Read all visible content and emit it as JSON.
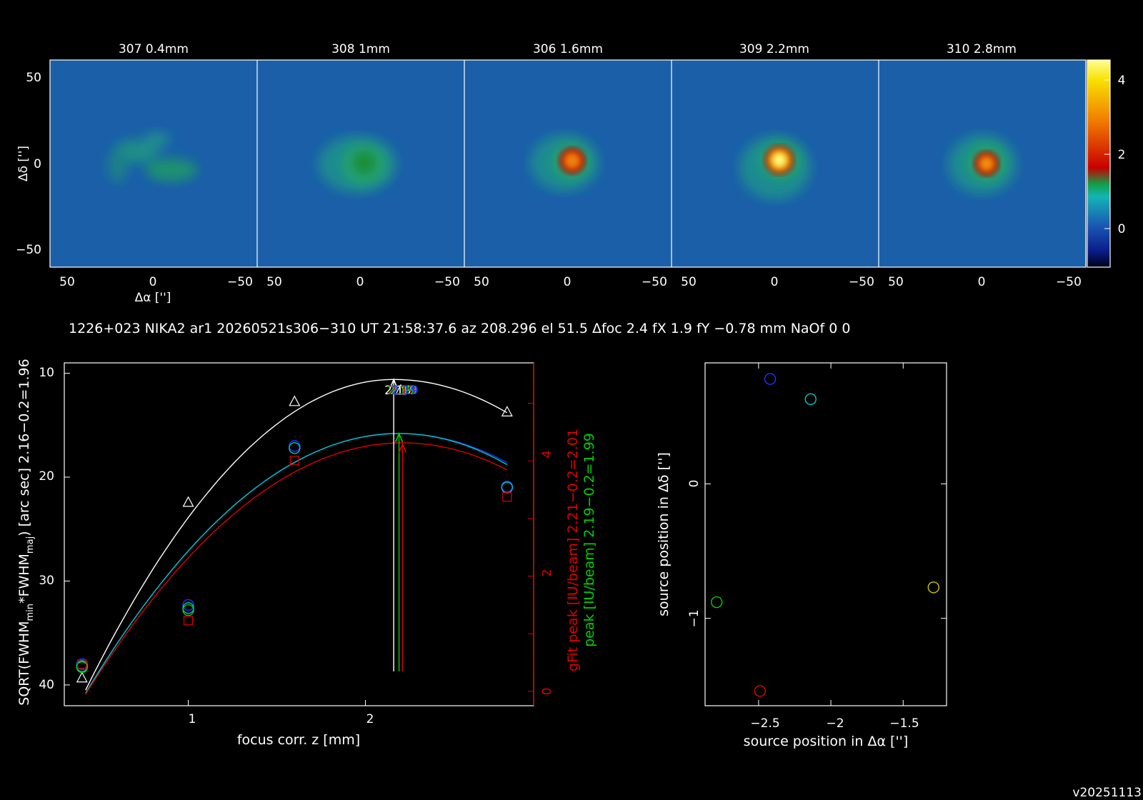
{
  "info_line": "1226+023 NIKA2 ar1 20260521s306−310 UT 21:58:37.6 az 208.296 el 51.5 Δfoc 2.4 fX 1.9 fY −0.78 mm NaOf 0 0",
  "version": "v20251113",
  "colors": {
    "white": "#ffffff",
    "blue": "#2233ff",
    "cyan": "#00c8c8",
    "green": "#00d000",
    "red": "#e00000",
    "olive": "#c8c800"
  },
  "chart_data": [
    {
      "type": "heatmap",
      "panels": [
        {
          "title": "307 0.4mm",
          "peak": 0.9
        },
        {
          "title": "308 1mm",
          "peak": 1.5
        },
        {
          "title": "306 1.6mm",
          "peak": 3.4
        },
        {
          "title": "309 2.2mm",
          "peak": 4.4
        },
        {
          "title": "310 2.8mm",
          "peak": 3.3
        }
      ],
      "xlabel": "Δα ['']",
      "ylabel": "Δδ ['']",
      "xticks": [
        "50",
        "0",
        "−50"
      ],
      "yticks": [
        "50",
        "0",
        "−50"
      ],
      "xlim": [
        65,
        -65
      ],
      "ylim": [
        -65,
        65
      ],
      "colorbar": {
        "ticks": [
          "4",
          "2",
          "0"
        ],
        "range": [
          -0.8,
          4.5
        ]
      }
    },
    {
      "type": "line",
      "xlabel": "focus corr. z [mm]",
      "ylabel_main": "SQRT(FWHM",
      "ylabel_sub1": "min",
      "ylabel_mid": "*FWHM",
      "ylabel_sub2": "maj",
      "ylabel_end": ") [arc sec] 2.16−0.2=1.96",
      "y2label_red": "gFit peak [IU/beam] 2.21−0.2=2.01",
      "y2label_green": "peak [IU/beam] 2.19−0.2=1.99",
      "xticks": [
        "1",
        "2"
      ],
      "yticks": [
        "10",
        "20",
        "30",
        "40"
      ],
      "y2ticks": [
        "4",
        "2",
        "0"
      ],
      "xlim": [
        0.3,
        2.95
      ],
      "ylim": [
        42,
        9
      ],
      "y2lim": [
        0,
        5.7
      ],
      "annotation": "2.19",
      "series": [
        {
          "color": "white",
          "marker": "triangle",
          "x": [
            0.4,
            1.0,
            1.6,
            2.2,
            2.8
          ],
          "y": [
            39.3,
            22.4,
            12.7,
            11.6,
            13.7
          ],
          "fit_x": [
            0.42,
            2.8
          ],
          "fit_peak_x": 2.16,
          "fit_peak_y": 10.6,
          "fit_end_y": [
            40.5,
            13.8
          ]
        },
        {
          "color": "blue",
          "marker": "circle",
          "x": [
            0.4,
            1.0,
            1.6,
            2.8
          ],
          "y": [
            38.0,
            32.3,
            17.0,
            20.9
          ],
          "fit_x": [
            0.42,
            2.8
          ],
          "fit_peak_x": 2.19,
          "fit_peak_y": 15.8,
          "fit_end_y": [
            40.8,
            18.6
          ]
        },
        {
          "color": "cyan",
          "marker": "circle",
          "x": [
            0.4,
            1.0,
            1.6,
            2.8
          ],
          "y": [
            38.2,
            32.6,
            17.2,
            21.0
          ],
          "fit_x": [
            0.42,
            2.8
          ],
          "fit_peak_x": 2.19,
          "fit_peak_y": 15.8,
          "fit_end_y": [
            40.8,
            18.8
          ]
        },
        {
          "color": "green",
          "marker": "circle",
          "x": [
            0.4,
            1.0
          ],
          "y": [
            38.3,
            32.8
          ]
        },
        {
          "color": "red",
          "marker": "square",
          "x": [
            0.4,
            1.0,
            1.6,
            2.8
          ],
          "y": [
            38.0,
            33.8,
            18.4,
            21.9
          ],
          "fit_x": [
            0.42,
            2.8
          ],
          "fit_peak_x": 2.21,
          "fit_peak_y": 16.7,
          "fit_end_y": [
            40.9,
            19.3
          ]
        }
      ],
      "arrows": [
        {
          "color": "white",
          "x": 2.16,
          "y_top": 10.6
        },
        {
          "color": "green",
          "x": 2.19,
          "y_top": 15.8
        },
        {
          "color": "red",
          "x": 2.21,
          "y_top": 16.8
        }
      ]
    },
    {
      "type": "scatter",
      "xlabel": "source position in Δα ['']",
      "ylabel": "source position in Δδ ['']",
      "xticks": [
        "−2.5",
        "−2",
        "−1.5"
      ],
      "yticks": [
        "0",
        "−1"
      ],
      "xlim": [
        -2.87,
        -1.2
      ],
      "ylim": [
        -1.65,
        0.9
      ],
      "points": [
        {
          "color": "blue",
          "x": -2.42,
          "y": 0.78
        },
        {
          "color": "cyan",
          "x": -2.14,
          "y": 0.63
        },
        {
          "color": "green",
          "x": -2.79,
          "y": -0.88
        },
        {
          "color": "red",
          "x": -2.49,
          "y": -1.54
        },
        {
          "color": "olive",
          "x": -1.29,
          "y": -0.77
        }
      ]
    }
  ]
}
